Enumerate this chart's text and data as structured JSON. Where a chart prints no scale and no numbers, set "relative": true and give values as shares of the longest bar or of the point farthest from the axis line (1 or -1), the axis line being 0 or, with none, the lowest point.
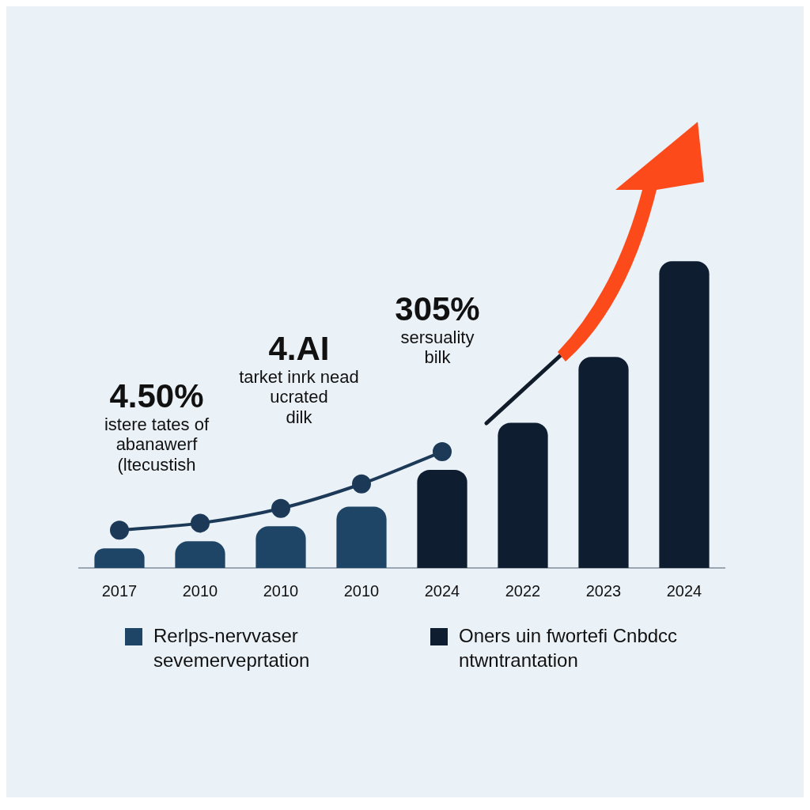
{
  "chart_data": {
    "type": "bar",
    "relative": true,
    "stacked": true,
    "categories": [
      "2017",
      "2010",
      "2010",
      "2010",
      "2024",
      "2022",
      "2023",
      "2024"
    ],
    "series": [
      {
        "name": "Rerlps-nervvaser sevemerveprtation",
        "color": "#1f4566",
        "values": [
          0.064,
          0.087,
          0.136,
          0.2,
          null,
          null,
          null,
          null
        ]
      },
      {
        "name": "Oners uin fwortefi Cnbdcc ntwntrantation",
        "color": "#0f1d30",
        "values": [
          null,
          null,
          null,
          null,
          0.32,
          0.473,
          0.688,
          1
        ]
      },
      {
        "type": "line",
        "color": "#1c3a57",
        "values": [
          0.123,
          0.146,
          0.194,
          0.274,
          0.379,
          null,
          null,
          null
        ]
      }
    ],
    "marker": "circle",
    "legend": "bottom",
    "grid": false,
    "annotations": [
      "4.50%\nistere tates of\nabanawerf\n(ltecustish",
      "4.AI\ntarket inrk nead\nucrated\ndilk",
      "305%\nsersuality\nbilk"
    ]
  }
}
